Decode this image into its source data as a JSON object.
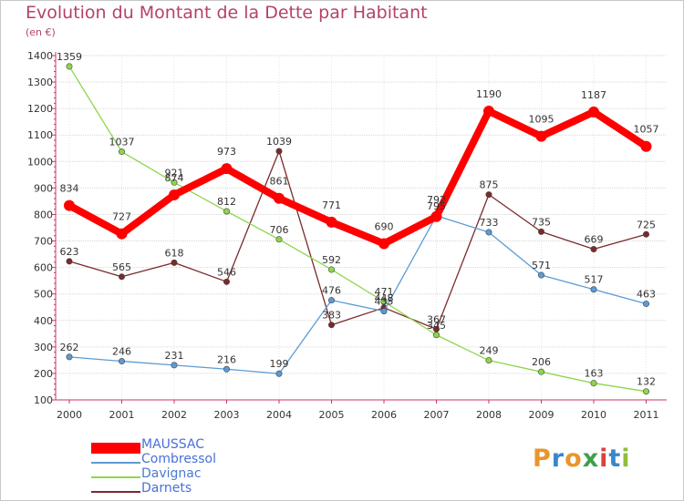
{
  "title": "Evolution du Montant de la Dette par Habitant",
  "unit": "(en €)",
  "logo": "Proxiti",
  "chart_data": {
    "type": "line",
    "title": "Evolution du Montant de la Dette par Habitant",
    "ylabel": "(en €)",
    "xlabel": "",
    "x": [
      2000,
      2001,
      2002,
      2003,
      2004,
      2005,
      2006,
      2007,
      2008,
      2009,
      2010,
      2011
    ],
    "ylim": [
      100,
      1400
    ],
    "yticks": [
      100,
      200,
      300,
      400,
      500,
      600,
      700,
      800,
      900,
      1000,
      1100,
      1200,
      1300,
      1400
    ],
    "grid": true,
    "legend_position": "bottom-left",
    "series": [
      {
        "name": "MAUSSAC",
        "color": "#ff0000",
        "values": [
          834,
          727,
          874,
          973,
          861,
          771,
          690,
          792,
          1190,
          1095,
          1187,
          1057
        ]
      },
      {
        "name": "Combressol",
        "color": "#5b9bd5",
        "values": [
          262,
          246,
          231,
          216,
          199,
          476,
          435,
          795,
          733,
          571,
          517,
          463
        ]
      },
      {
        "name": "Davignac",
        "color": "#8ed64b",
        "values": [
          1359,
          1037,
          921,
          812,
          706,
          592,
          471,
          345,
          249,
          206,
          163,
          132
        ]
      },
      {
        "name": "Darnets",
        "color": "#7b2a2a",
        "values": [
          623,
          565,
          618,
          546,
          1039,
          383,
          448,
          367,
          875,
          735,
          669,
          725
        ]
      }
    ]
  }
}
